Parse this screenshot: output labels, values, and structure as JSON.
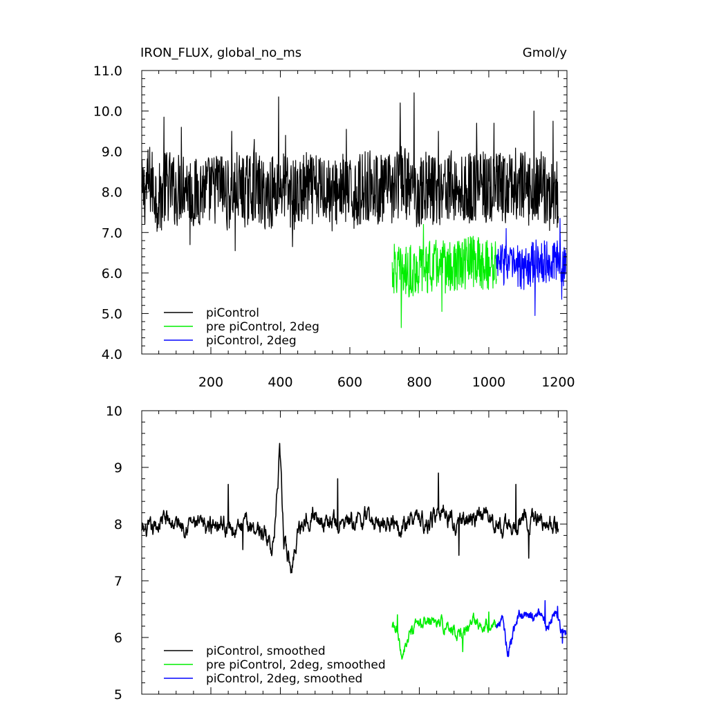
{
  "chart_data": [
    {
      "type": "line",
      "title_left": "IRON_FLUX, global_no_ms",
      "title_right": "Gmol/y",
      "xlim": [
        1,
        1225
      ],
      "ylim": [
        4.0,
        11.0
      ],
      "x_ticks": [
        "200",
        "400",
        "600",
        "800",
        "1000",
        "1200"
      ],
      "y_ticks": [
        "4.0",
        "5.0",
        "6.0",
        "7.0",
        "8.0",
        "9.0",
        "10.0",
        "11.0"
      ],
      "legend_position": "bottom-left",
      "series": [
        {
          "name": "piControl",
          "color": "#000000",
          "x_start": 1,
          "x_end": 1200,
          "points": [
            [
              1,
              7.9
            ],
            [
              25,
              8.3
            ],
            [
              50,
              7.8
            ],
            [
              75,
              8.2
            ],
            [
              100,
              8.0
            ],
            [
              125,
              8.3
            ],
            [
              150,
              7.9
            ],
            [
              175,
              8.1
            ],
            [
              200,
              8.0
            ],
            [
              225,
              8.2
            ],
            [
              250,
              7.9
            ],
            [
              275,
              8.1
            ],
            [
              300,
              8.0
            ],
            [
              325,
              8.2
            ],
            [
              350,
              7.9
            ],
            [
              375,
              8.0
            ],
            [
              400,
              8.2
            ],
            [
              425,
              8.0
            ],
            [
              450,
              7.9
            ],
            [
              475,
              8.1
            ],
            [
              500,
              8.0
            ],
            [
              525,
              8.2
            ],
            [
              550,
              7.9
            ],
            [
              575,
              8.1
            ],
            [
              600,
              7.9
            ],
            [
              625,
              8.0
            ],
            [
              650,
              8.2
            ],
            [
              675,
              8.1
            ],
            [
              700,
              8.0
            ],
            [
              725,
              8.1
            ],
            [
              750,
              8.3
            ],
            [
              775,
              8.1
            ],
            [
              800,
              8.0
            ],
            [
              825,
              8.2
            ],
            [
              850,
              8.0
            ],
            [
              875,
              8.2
            ],
            [
              900,
              8.1
            ],
            [
              925,
              8.0
            ],
            [
              950,
              8.1
            ],
            [
              975,
              8.2
            ],
            [
              1000,
              8.0
            ],
            [
              1025,
              8.1
            ],
            [
              1050,
              8.0
            ],
            [
              1075,
              8.2
            ],
            [
              1100,
              8.1
            ],
            [
              1125,
              8.0
            ],
            [
              1150,
              8.2
            ],
            [
              1175,
              7.9
            ],
            [
              1200,
              7.9
            ]
          ],
          "noise_amp": 0.9,
          "spikes": [
            [
              65,
              9.85
            ],
            [
              115,
              9.6
            ],
            [
              260,
              9.5
            ],
            [
              325,
              9.3
            ],
            [
              395,
              10.35
            ],
            [
              415,
              9.4
            ],
            [
              590,
              9.55
            ],
            [
              745,
              10.2
            ],
            [
              785,
              10.45
            ],
            [
              855,
              9.5
            ],
            [
              965,
              9.7
            ],
            [
              1015,
              9.7
            ],
            [
              1130,
              10.0
            ],
            [
              1185,
              9.75
            ],
            [
              140,
              6.7
            ],
            [
              270,
              6.55
            ],
            [
              435,
              6.65
            ]
          ]
        },
        {
          "name": "pre piControl, 2deg",
          "color": "#00ee00",
          "x_start": 722,
          "x_end": 1022,
          "points": [
            [
              722,
              6.1
            ],
            [
              760,
              6.0
            ],
            [
              800,
              6.1
            ],
            [
              850,
              6.2
            ],
            [
              900,
              6.1
            ],
            [
              950,
              6.3
            ],
            [
              1000,
              6.2
            ],
            [
              1022,
              6.2
            ]
          ],
          "noise_amp": 0.65,
          "spikes": [
            [
              748,
              4.65
            ],
            [
              865,
              5.05
            ],
            [
              812,
              7.2
            ]
          ]
        },
        {
          "name": "piControl, 2deg",
          "color": "#0000ff",
          "x_start": 1022,
          "x_end": 1222,
          "points": [
            [
              1022,
              6.3
            ],
            [
              1060,
              6.2
            ],
            [
              1100,
              6.1
            ],
            [
              1140,
              6.3
            ],
            [
              1180,
              6.3
            ],
            [
              1222,
              6.2
            ]
          ],
          "noise_amp": 0.55,
          "spikes": [
            [
              1133,
              4.95
            ],
            [
              1205,
              7.35
            ],
            [
              1210,
              5.35
            ],
            [
              1050,
              7.1
            ]
          ]
        }
      ]
    },
    {
      "type": "line",
      "title_left": "",
      "title_right": "",
      "xlim": [
        1,
        1225
      ],
      "ylim": [
        5,
        10
      ],
      "x_ticks": [],
      "y_ticks": [
        "5",
        "6",
        "7",
        "8",
        "9",
        "10"
      ],
      "legend_position": "bottom-left",
      "series": [
        {
          "name": "piControl, smoothed",
          "color": "#000000",
          "x_start": 1,
          "x_end": 1200,
          "points": [
            [
              1,
              7.85
            ],
            [
              30,
              7.85
            ],
            [
              60,
              8.1
            ],
            [
              100,
              8.0
            ],
            [
              140,
              8.05
            ],
            [
              180,
              7.9
            ],
            [
              220,
              8.1
            ],
            [
              250,
              7.95
            ],
            [
              280,
              7.9
            ],
            [
              320,
              8.0
            ],
            [
              360,
              7.8
            ],
            [
              380,
              7.6
            ],
            [
              398,
              9.2
            ],
            [
              410,
              7.7
            ],
            [
              432,
              7.15
            ],
            [
              450,
              7.9
            ],
            [
              480,
              8.2
            ],
            [
              520,
              8.1
            ],
            [
              560,
              8.0
            ],
            [
              600,
              8.0
            ],
            [
              640,
              8.1
            ],
            [
              680,
              8.0
            ],
            [
              720,
              8.1
            ],
            [
              760,
              8.0
            ],
            [
              800,
              8.1
            ],
            [
              830,
              8.0
            ],
            [
              860,
              8.3
            ],
            [
              900,
              8.0
            ],
            [
              950,
              8.1
            ],
            [
              1000,
              8.1
            ],
            [
              1050,
              7.9
            ],
            [
              1100,
              8.1
            ],
            [
              1150,
              8.1
            ],
            [
              1200,
              7.9
            ]
          ],
          "noise_amp": 0.32,
          "spikes": [
            [
              250,
              8.7
            ],
            [
              565,
              8.8
            ],
            [
              855,
              8.9
            ],
            [
              1078,
              8.7
            ],
            [
              1115,
              7.4
            ],
            [
              914,
              7.45
            ],
            [
              292,
              7.55
            ]
          ]
        },
        {
          "name": "pre piControl, 2deg, smoothed",
          "color": "#00ee00",
          "x_start": 722,
          "x_end": 1022,
          "points": [
            [
              722,
              6.15
            ],
            [
              735,
              6.1
            ],
            [
              748,
              5.65
            ],
            [
              760,
              5.9
            ],
            [
              790,
              6.15
            ],
            [
              830,
              6.3
            ],
            [
              870,
              6.2
            ],
            [
              900,
              6.15
            ],
            [
              925,
              6.05
            ],
            [
              950,
              6.3
            ],
            [
              1000,
              6.25
            ],
            [
              1022,
              6.2
            ]
          ],
          "noise_amp": 0.22,
          "spikes": [
            [
              737,
              6.4
            ],
            [
              925,
              5.75
            ],
            [
              1000,
              6.45
            ]
          ]
        },
        {
          "name": "piControl, 2deg, smoothed",
          "color": "#0000ff",
          "x_start": 1022,
          "x_end": 1222,
          "points": [
            [
              1022,
              6.2
            ],
            [
              1040,
              6.3
            ],
            [
              1055,
              5.75
            ],
            [
              1080,
              6.35
            ],
            [
              1120,
              6.35
            ],
            [
              1150,
              6.4
            ],
            [
              1170,
              6.1
            ],
            [
              1190,
              6.45
            ],
            [
              1210,
              6.1
            ],
            [
              1222,
              6.1
            ]
          ],
          "noise_amp": 0.22,
          "spikes": [
            [
              1055,
              5.75
            ],
            [
              1162,
              6.65
            ],
            [
              1198,
              6.55
            ],
            [
              1212,
              5.9
            ]
          ]
        }
      ]
    }
  ]
}
